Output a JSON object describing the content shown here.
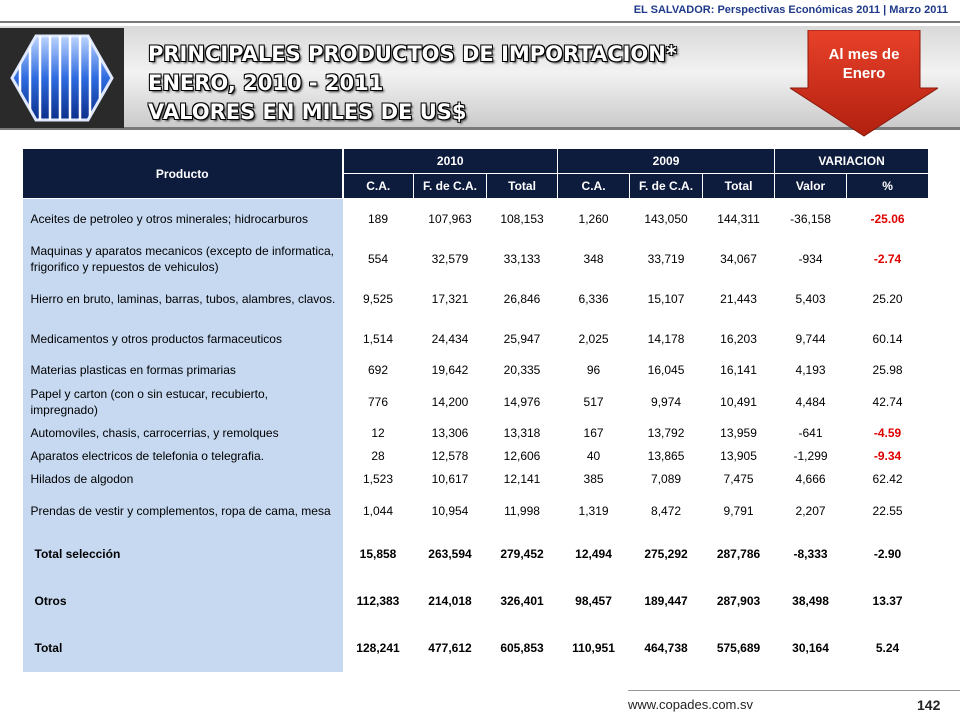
{
  "header": {
    "ref": "EL SALVADOR: Perspectivas Económicas 2011 | Marzo 2011",
    "title_lines": [
      "PRINCIPALES PRODUCTOS DE IMPORTACION*",
      "ENERO, 2010 - 2011",
      "VALORES EN MILES DE US$"
    ],
    "callout_lines": [
      "Al mes de",
      "Enero"
    ],
    "accent_red": "#d9301f",
    "header_navy": "#0d1b3d",
    "product_blue": "#c6d9f1"
  },
  "table": {
    "product_header": "Producto",
    "group_headers": [
      "2010",
      "2009",
      "VARIACION"
    ],
    "sub_headers": [
      "C.A.",
      "F. de C.A.",
      "Total",
      "C.A.",
      "F. de C.A.",
      "Total",
      "Valor",
      "%"
    ],
    "rows": [
      {
        "product": "Aceites de petroleo y otros minerales; hidrocarburos",
        "values": [
          "189",
          "107,963",
          "108,153",
          "1,260",
          "143,050",
          "144,311",
          "-36,158",
          "-25.06"
        ]
      },
      {
        "product": "Maquinas y aparatos mecanicos (excepto de informatica, frigorifico y repuestos de vehiculos)",
        "values": [
          "554",
          "32,579",
          "33,133",
          "348",
          "33,719",
          "34,067",
          "-934",
          "-2.74"
        ]
      },
      {
        "product": "Hierro en bruto, laminas, barras, tubos, alambres, clavos.",
        "values": [
          "9,525",
          "17,321",
          "26,846",
          "6,336",
          "15,107",
          "21,443",
          "5,403",
          "25.20"
        ]
      },
      {
        "product": "Medicamentos y  otros productos farmaceuticos",
        "values": [
          "1,514",
          "24,434",
          "25,947",
          "2,025",
          "14,178",
          "16,203",
          "9,744",
          "60.14"
        ]
      },
      {
        "product": "Materias plasticas en formas primarias",
        "values": [
          "692",
          "19,642",
          "20,335",
          "96",
          "16,045",
          "16,141",
          "4,193",
          "25.98"
        ]
      },
      {
        "product": "Papel y carton (con o sin estucar, recubierto, impregnado)",
        "values": [
          "776",
          "14,200",
          "14,976",
          "517",
          "9,974",
          "10,491",
          "4,484",
          "42.74"
        ]
      },
      {
        "product": "Automoviles, chasis, carrocerrias, y remolques",
        "values": [
          "12",
          "13,306",
          "13,318",
          "167",
          "13,792",
          "13,959",
          "-641",
          "-4.59"
        ]
      },
      {
        "product": "Aparatos electricos de telefonia o telegrafia.",
        "values": [
          "28",
          "12,578",
          "12,606",
          "40",
          "13,865",
          "13,905",
          "-1,299",
          "-9.34"
        ]
      },
      {
        "product": "Hilados de algodon",
        "values": [
          "1,523",
          "10,617",
          "12,141",
          "385",
          "7,089",
          "7,475",
          "4,666",
          "62.42"
        ]
      },
      {
        "product": "Prendas de vestir y complementos, ropa de cama, mesa",
        "values": [
          "1,044",
          "10,954",
          "11,998",
          "1,319",
          "8,472",
          "9,791",
          "2,207",
          "22.55"
        ]
      }
    ],
    "totals": [
      {
        "product": "Total selección",
        "values": [
          "15,858",
          "263,594",
          "279,452",
          "12,494",
          "275,292",
          "287,786",
          "-8,333",
          "-2.90"
        ]
      },
      {
        "product": "Otros",
        "values": [
          "112,383",
          "214,018",
          "326,401",
          "98,457",
          "189,447",
          "287,903",
          "38,498",
          "13.37"
        ]
      },
      {
        "product": "Total",
        "values": [
          "128,241",
          "477,612",
          "605,853",
          "110,951",
          "464,738",
          "575,689",
          "30,164",
          "5.24"
        ]
      }
    ]
  },
  "footer": {
    "url": "www.copades.com.sv",
    "page": "142"
  }
}
